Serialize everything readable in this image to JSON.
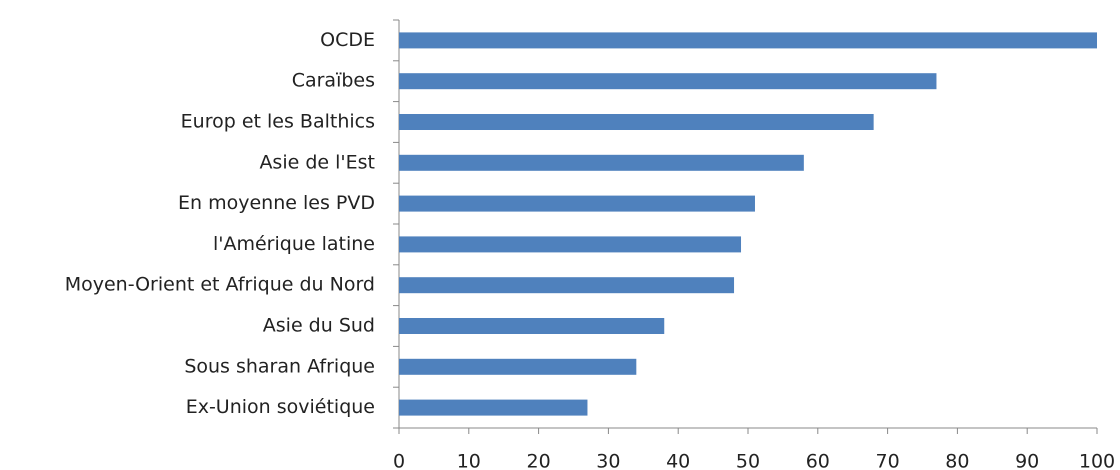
{
  "chart_data": {
    "type": "bar",
    "orientation": "horizontal",
    "categories": [
      "OCDE",
      "Caraïbes",
      "Europ et les Balthics",
      "Asie de l'Est",
      "En moyenne les PVD",
      "l'Amérique latine",
      "Moyen-Orient et Afrique du Nord",
      "Asie du Sud",
      "Sous sharan Afrique",
      "Ex-Union soviétique"
    ],
    "values": [
      100,
      77,
      68,
      58,
      51,
      49,
      48,
      38,
      34,
      27
    ],
    "color": "#4f81bd",
    "xlim": [
      0,
      100
    ],
    "xticks": [
      0,
      10,
      20,
      30,
      40,
      50,
      60,
      70,
      80,
      90,
      100
    ],
    "grid": false
  }
}
